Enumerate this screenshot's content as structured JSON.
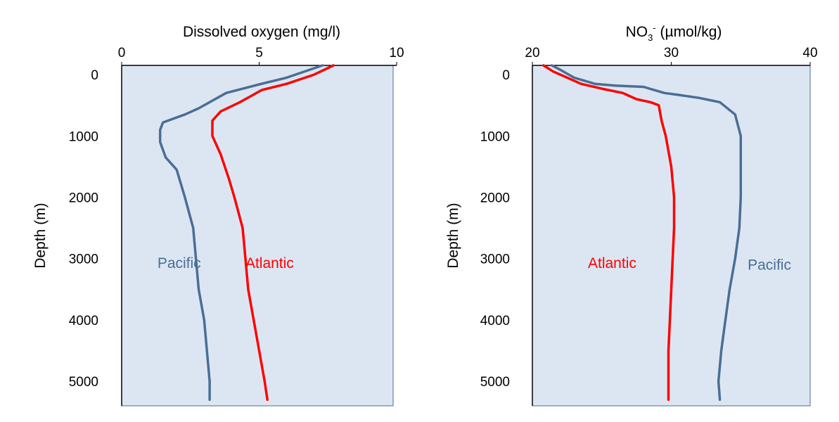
{
  "chart_data": [
    {
      "type": "line",
      "title": "",
      "xlabel": "Dissolved oxygen (mg/l)",
      "ylabel": "Depth (m)",
      "xlim": [
        0,
        10
      ],
      "ylim": [
        5400,
        -150
      ],
      "x_axis_position": "top",
      "y_inverted": true,
      "xticks": [
        "0",
        "5",
        "10"
      ],
      "yticks": [
        "0",
        "1000",
        "2000",
        "3000",
        "4000",
        "5000"
      ],
      "plot_background": "#dce6f2",
      "series": [
        {
          "name": "Pacific",
          "color": "#4a6e96",
          "points": [
            [
              7.3,
              -150
            ],
            [
              6.0,
              50
            ],
            [
              5.0,
              160
            ],
            [
              3.8,
              300
            ],
            [
              2.8,
              550
            ],
            [
              2.3,
              650
            ],
            [
              1.5,
              780
            ],
            [
              1.4,
              900
            ],
            [
              1.4,
              1100
            ],
            [
              1.6,
              1350
            ],
            [
              2.0,
              1550
            ],
            [
              2.3,
              2000
            ],
            [
              2.6,
              2500
            ],
            [
              2.7,
              3000
            ],
            [
              2.8,
              3500
            ],
            [
              3.0,
              4000
            ],
            [
              3.1,
              4500
            ],
            [
              3.2,
              5000
            ],
            [
              3.2,
              5300
            ]
          ]
        },
        {
          "name": "Atlantic",
          "color": "#ff0000",
          "points": [
            [
              7.7,
              -150
            ],
            [
              7.0,
              0
            ],
            [
              6.0,
              150
            ],
            [
              5.1,
              250
            ],
            [
              4.7,
              350
            ],
            [
              4.3,
              450
            ],
            [
              3.6,
              600
            ],
            [
              3.3,
              750
            ],
            [
              3.3,
              1000
            ],
            [
              3.6,
              1300
            ],
            [
              3.9,
              1700
            ],
            [
              4.1,
              2000
            ],
            [
              4.4,
              2500
            ],
            [
              4.5,
              3000
            ],
            [
              4.6,
              3500
            ],
            [
              4.8,
              4000
            ],
            [
              5.0,
              4500
            ],
            [
              5.2,
              5000
            ],
            [
              5.3,
              5300
            ]
          ]
        }
      ],
      "labels": [
        {
          "text": "Pacific",
          "color": "#4a6e96",
          "x": 1.3,
          "y": 3070
        },
        {
          "text": "Atlantic",
          "color": "#ff0000",
          "x": 4.5,
          "y": 3070
        }
      ]
    },
    {
      "type": "line",
      "title": "",
      "xlabel": "NO",
      "xlabel_sub": "3",
      "xlabel_sup": "-",
      "xlabel_rest": " (µmol/kg)",
      "ylabel": "Depth (m)",
      "xlim": [
        20,
        40
      ],
      "ylim": [
        5400,
        -150
      ],
      "x_axis_position": "top",
      "y_inverted": true,
      "xticks": [
        "20",
        "30",
        "40"
      ],
      "yticks": [
        "0",
        "1000",
        "2000",
        "3000",
        "4000",
        "5000"
      ],
      "plot_background": "#dce6f2",
      "series": [
        {
          "name": "Pacific",
          "color": "#4a6e96",
          "points": [
            [
              21.4,
              -150
            ],
            [
              22.0,
              -80
            ],
            [
              23.0,
              50
            ],
            [
              24.5,
              150
            ],
            [
              26.0,
              180
            ],
            [
              28.0,
              200
            ],
            [
              29.5,
              300
            ],
            [
              30.5,
              330
            ],
            [
              32.0,
              380
            ],
            [
              33.5,
              450
            ],
            [
              34.6,
              650
            ],
            [
              35.0,
              1000
            ],
            [
              35.0,
              1500
            ],
            [
              35.0,
              2000
            ],
            [
              34.9,
              2500
            ],
            [
              34.6,
              3000
            ],
            [
              34.2,
              3500
            ],
            [
              33.9,
              4000
            ],
            [
              33.6,
              4500
            ],
            [
              33.4,
              5000
            ],
            [
              33.5,
              5300
            ]
          ]
        },
        {
          "name": "Atlantic",
          "color": "#ff0000",
          "points": [
            [
              20.8,
              -150
            ],
            [
              21.5,
              -50
            ],
            [
              22.5,
              50
            ],
            [
              23.5,
              150
            ],
            [
              25.0,
              230
            ],
            [
              26.5,
              300
            ],
            [
              27.5,
              400
            ],
            [
              28.5,
              450
            ],
            [
              29.1,
              500
            ],
            [
              29.3,
              750
            ],
            [
              29.6,
              1000
            ],
            [
              30.0,
              1500
            ],
            [
              30.2,
              2000
            ],
            [
              30.2,
              2500
            ],
            [
              30.1,
              3000
            ],
            [
              30.0,
              3500
            ],
            [
              29.9,
              4000
            ],
            [
              29.8,
              4500
            ],
            [
              29.8,
              5000
            ],
            [
              29.8,
              5300
            ]
          ]
        }
      ],
      "labels": [
        {
          "text": "Atlantic",
          "color": "#ff0000",
          "x": 24.0,
          "y": 3070
        },
        {
          "text": "Pacific",
          "color": "#4a6e96",
          "x": 35.5,
          "y": 3100
        }
      ]
    }
  ]
}
